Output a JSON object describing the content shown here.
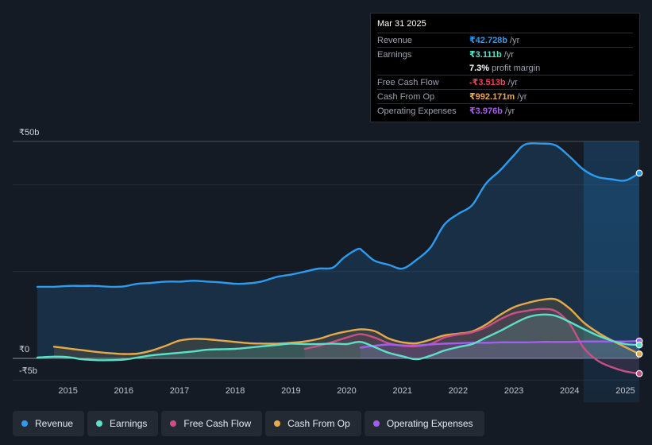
{
  "tooltip": {
    "date": "Mar 31 2025",
    "rows": [
      {
        "label": "Revenue",
        "value": "₹42.728b",
        "unit": "/yr",
        "color": "#2d9cf0"
      },
      {
        "label": "Earnings",
        "value": "₹3.111b",
        "unit": "/yr",
        "color": "#5de0c8"
      },
      {
        "label": "",
        "value": "7.3%",
        "unit": "profit margin",
        "color": "#ffffff"
      },
      {
        "label": "Free Cash Flow",
        "value": "-₹3.513b",
        "unit": "/yr",
        "color": "#e8455a"
      },
      {
        "label": "Cash From Op",
        "value": "₹992.171m",
        "unit": "/yr",
        "color": "#e8a94a"
      },
      {
        "label": "Operating Expenses",
        "value": "₹3.976b",
        "unit": "/yr",
        "color": "#a55cf0"
      }
    ]
  },
  "legend": [
    {
      "label": "Revenue",
      "color": "#2d9cf0"
    },
    {
      "label": "Earnings",
      "color": "#5de0c8"
    },
    {
      "label": "Free Cash Flow",
      "color": "#c94f86"
    },
    {
      "label": "Cash From Op",
      "color": "#e8a94a"
    },
    {
      "label": "Operating Expenses",
      "color": "#a55cf0"
    }
  ],
  "chart_data": {
    "type": "line",
    "title": "",
    "xlabel": "",
    "ylabel": "",
    "y_top_label": "₹50b",
    "y_zero_label": "₹0",
    "y_bottom_label": "-₹5b",
    "ylim": [
      -5,
      50
    ],
    "xlim": [
      2014.45,
      2025.25
    ],
    "x_ticks": [
      2015,
      2016,
      2017,
      2018,
      2019,
      2020,
      2021,
      2022,
      2023,
      2024,
      2025
    ],
    "x_tick_labels": [
      "2015",
      "2016",
      "2017",
      "2018",
      "2019",
      "2020",
      "2021",
      "2022",
      "2023",
      "2024",
      "2025"
    ],
    "forecast_shade_start": 2024.25,
    "series": [
      {
        "name": "Revenue",
        "color": "#2d9cf0",
        "area": true,
        "x": [
          2014.45,
          2014.75,
          2015.0,
          2015.25,
          2015.5,
          2015.75,
          2016.0,
          2016.25,
          2016.5,
          2016.75,
          2017.0,
          2017.25,
          2017.5,
          2017.75,
          2018.0,
          2018.25,
          2018.5,
          2018.75,
          2019.0,
          2019.25,
          2019.5,
          2019.75,
          2019.95,
          2020.2,
          2020.3,
          2020.5,
          2020.75,
          2021.0,
          2021.25,
          2021.5,
          2021.75,
          2022.0,
          2022.25,
          2022.5,
          2022.75,
          2023.0,
          2023.2,
          2023.5,
          2023.75,
          2024.0,
          2024.25,
          2024.5,
          2024.75,
          2025.0,
          2025.25
        ],
        "values": [
          16.5,
          16.5,
          16.7,
          16.7,
          16.7,
          16.5,
          16.6,
          17.2,
          17.4,
          17.7,
          17.7,
          17.9,
          17.7,
          17.5,
          17.2,
          17.3,
          17.8,
          18.8,
          19.3,
          20.0,
          20.7,
          20.9,
          23.2,
          25.2,
          24.6,
          22.5,
          21.6,
          20.7,
          22.7,
          25.5,
          30.8,
          33.3,
          35.3,
          40.3,
          43.3,
          46.8,
          49.3,
          49.5,
          49.1,
          46.5,
          43.5,
          41.8,
          41.3,
          41.0,
          42.7
        ]
      },
      {
        "name": "Earnings",
        "color": "#5de0c8",
        "area": true,
        "x": [
          2014.45,
          2014.75,
          2015.0,
          2015.25,
          2015.5,
          2015.75,
          2016.0,
          2016.25,
          2016.5,
          2016.75,
          2017.0,
          2017.25,
          2017.5,
          2017.75,
          2018.0,
          2018.25,
          2018.5,
          2018.75,
          2019.0,
          2019.25,
          2019.5,
          2019.75,
          2020.0,
          2020.25,
          2020.5,
          2020.75,
          2021.0,
          2021.25,
          2021.5,
          2021.75,
          2022.0,
          2022.25,
          2022.5,
          2022.75,
          2023.0,
          2023.25,
          2023.5,
          2023.75,
          2024.0,
          2024.25,
          2024.5,
          2024.75,
          2025.0,
          2025.25
        ],
        "values": [
          0.2,
          0.4,
          0.3,
          -0.2,
          -0.4,
          -0.4,
          -0.3,
          0.2,
          0.7,
          1.0,
          1.3,
          1.6,
          2.0,
          2.1,
          2.2,
          2.5,
          2.8,
          3.1,
          3.4,
          3.3,
          3.3,
          3.4,
          3.3,
          3.8,
          2.6,
          1.3,
          0.5,
          -0.2,
          0.6,
          1.8,
          2.6,
          3.3,
          4.8,
          6.3,
          8.0,
          9.5,
          10.1,
          9.8,
          8.4,
          6.8,
          5.3,
          4.1,
          3.3,
          3.1
        ]
      },
      {
        "name": "Free Cash Flow",
        "color": "#c94f86",
        "area": true,
        "x": [
          2019.25,
          2019.5,
          2019.75,
          2020.0,
          2020.25,
          2020.5,
          2020.75,
          2021.0,
          2021.25,
          2021.5,
          2021.75,
          2022.0,
          2022.25,
          2022.5,
          2022.75,
          2023.0,
          2023.25,
          2023.5,
          2023.75,
          2024.0,
          2024.25,
          2024.5,
          2024.75,
          2025.0,
          2025.25
        ],
        "values": [
          2.2,
          2.9,
          3.8,
          4.8,
          5.6,
          4.8,
          3.5,
          2.9,
          2.8,
          3.3,
          4.8,
          5.5,
          6.0,
          7.2,
          9.0,
          10.4,
          11.0,
          11.4,
          10.9,
          8.0,
          2.5,
          -0.5,
          -2.0,
          -3.0,
          -3.5
        ]
      },
      {
        "name": "Cash From Op",
        "color": "#e8a94a",
        "area": true,
        "x": [
          2014.75,
          2015.0,
          2015.25,
          2015.5,
          2015.75,
          2016.0,
          2016.25,
          2016.5,
          2016.75,
          2017.0,
          2017.25,
          2017.5,
          2017.75,
          2018.0,
          2018.25,
          2018.5,
          2018.75,
          2019.0,
          2019.25,
          2019.5,
          2019.75,
          2020.0,
          2020.25,
          2020.5,
          2020.75,
          2021.0,
          2021.25,
          2021.5,
          2021.75,
          2022.0,
          2022.25,
          2022.5,
          2022.75,
          2023.0,
          2023.25,
          2023.5,
          2023.75,
          2024.0,
          2024.25,
          2024.5,
          2024.75,
          2025.0,
          2025.25
        ],
        "values": [
          2.7,
          2.3,
          1.9,
          1.5,
          1.2,
          1.0,
          1.1,
          1.8,
          2.9,
          4.1,
          4.5,
          4.4,
          4.1,
          3.8,
          3.5,
          3.4,
          3.4,
          3.6,
          3.9,
          4.5,
          5.5,
          6.2,
          6.7,
          6.3,
          4.6,
          3.7,
          3.5,
          4.3,
          5.3,
          5.7,
          6.2,
          7.8,
          10.0,
          11.8,
          12.8,
          13.5,
          13.6,
          11.5,
          8.3,
          6.0,
          4.2,
          2.6,
          1.0
        ]
      },
      {
        "name": "Operating Expenses",
        "color": "#a55cf0",
        "area": true,
        "x": [
          2020.25,
          2020.5,
          2020.75,
          2021.0,
          2021.25,
          2021.5,
          2021.75,
          2022.0,
          2022.25,
          2022.5,
          2022.75,
          2023.0,
          2023.25,
          2023.5,
          2023.75,
          2024.0,
          2024.25,
          2024.5,
          2024.75,
          2025.0,
          2025.25
        ],
        "values": [
          2.5,
          2.9,
          3.2,
          3.0,
          3.0,
          3.2,
          3.4,
          3.5,
          3.6,
          3.6,
          3.7,
          3.7,
          3.7,
          3.8,
          3.8,
          3.8,
          3.9,
          3.9,
          3.9,
          3.9,
          4.0
        ]
      }
    ]
  }
}
